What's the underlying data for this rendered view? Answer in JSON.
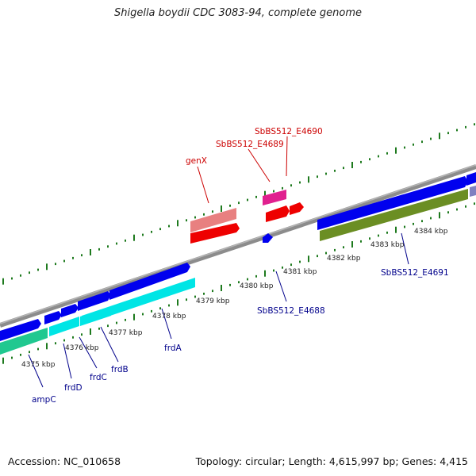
{
  "title": "Shigella boydii CDC 3083-94, complete genome",
  "footer": {
    "accession": "Accession: NC_010658",
    "stats": "Topology: circular; Length: 4,615,997 bp; Genes: 4,415"
  },
  "colors": {
    "backbone": "#8c8c8c",
    "tick": "#1e7a1e",
    "forward_gene": "#0000ee",
    "operon_gene": "#00e5e5",
    "reverse_gene": "#ee0000",
    "pseudo_gene": "#e88080",
    "rna_gene": "#e0208f",
    "olive_gene": "#6b8e23",
    "green_gene": "#20c890",
    "label_blue": "#00008b",
    "label_red": "#cc0000"
  },
  "scale_labels": [
    "4375 kbp",
    "4376 kbp",
    "4377 kbp",
    "4378 kbp",
    "4379 kbp",
    "4380 kbp",
    "4381 kbp",
    "4382 kbp",
    "4383 kbp",
    "4384 kbp"
  ],
  "genes_forward": [
    "ampC",
    "frdD",
    "frdC",
    "frdB",
    "frdA",
    "SbBS512_E4688",
    "SbBS512_E4691"
  ],
  "genes_reverse": [
    "genX",
    "SbBS512_E4689",
    "SbBS512_E4690"
  ]
}
